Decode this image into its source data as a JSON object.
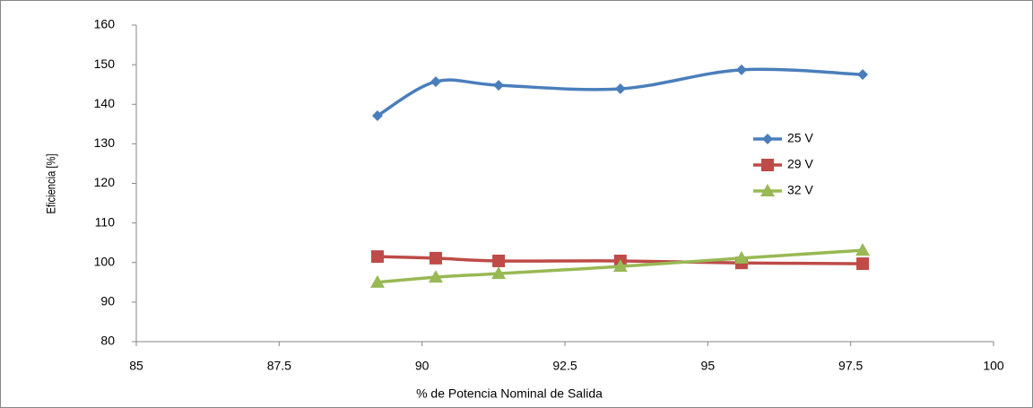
{
  "chart_data": {
    "type": "line",
    "smooth": true,
    "x_label": "% de Potencia  Nominal  de Salida",
    "y_label": "Eficiencia  [%]",
    "x": [
      89.22,
      90.24,
      91.34,
      93.47,
      95.59,
      97.71
    ],
    "series": [
      {
        "name": "25 V",
        "color": "#4a7ebb",
        "marker": "diamond",
        "values": [
          137.1,
          145.7,
          144.8,
          143.9,
          148.7,
          147.5
        ]
      },
      {
        "name": "29 V",
        "color": "#be4b48",
        "marker": "square",
        "values": [
          101.5,
          101.1,
          100.4,
          100.4,
          99.9,
          99.7
        ]
      },
      {
        "name": "32 V",
        "color": "#98b954",
        "marker": "triangle",
        "values": [
          95.0,
          96.3,
          97.2,
          99.0,
          101.1,
          103.1
        ]
      }
    ],
    "xlim": [
      85,
      100
    ],
    "xticks": [
      85,
      87.5,
      90,
      92.5,
      95,
      97.5,
      100
    ],
    "ylim": [
      80,
      160
    ],
    "yticks": [
      80,
      90,
      100,
      110,
      120,
      130,
      140,
      150,
      160
    ],
    "grid": false,
    "legend": "right"
  }
}
